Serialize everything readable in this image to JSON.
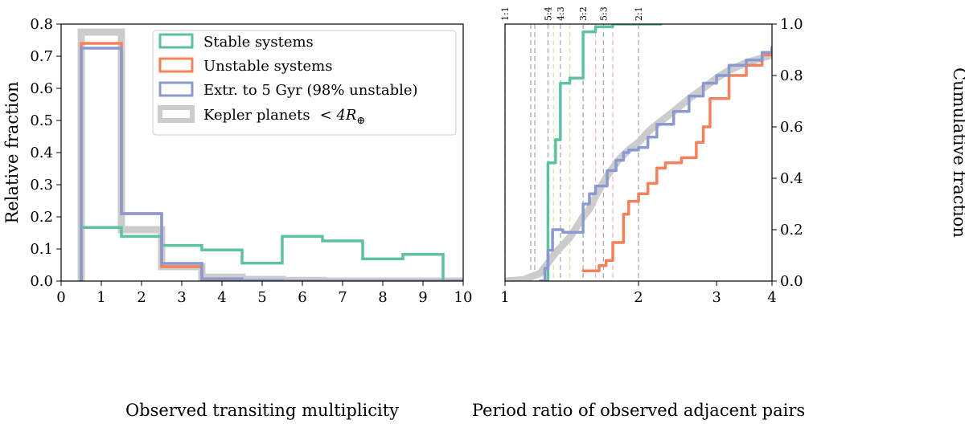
{
  "chart_data": [
    {
      "type": "histogram",
      "panel": "left",
      "xlabel": "Observed transiting multiplicity",
      "ylabel": "Relative fraction",
      "xlim": [
        0,
        10
      ],
      "ylim": [
        0,
        0.8
      ],
      "xticks": [
        0,
        1,
        2,
        3,
        4,
        5,
        6,
        7,
        8,
        9,
        10
      ],
      "yticks": [
        0.0,
        0.1,
        0.2,
        0.3,
        0.4,
        0.5,
        0.6,
        0.7,
        0.8
      ],
      "bin_edges": [
        0.5,
        1.5,
        2.5,
        3.5,
        4.5,
        5.5,
        6.5,
        7.5,
        8.5,
        9.5,
        10.5
      ],
      "legend": {
        "placement": "top-right",
        "entries": [
          "Stable systems",
          "Unstable systems",
          "Extr. to 5 Gyr (98% unstable)",
          "Kepler planets $<4R_\\oplus$"
        ]
      },
      "series": [
        {
          "name": "Kepler planets <4R⊕",
          "label": "Kepler planets",
          "label_math": "< 4R",
          "label_sub": "⊕",
          "color": "#cccccc",
          "values": [
            0.775,
            0.16,
            0.045,
            0.012,
            0.005,
            0.002,
            0.0,
            0.0,
            0.0,
            0.0
          ]
        },
        {
          "name": "Stable systems",
          "color": "#5ec1a0",
          "values": [
            0.167,
            0.139,
            0.111,
            0.097,
            0.056,
            0.139,
            0.125,
            0.069,
            0.083,
            0.0
          ]
        },
        {
          "name": "Unstable systems",
          "color": "#f4815a",
          "values": [
            0.74,
            0.21,
            0.045,
            0.004,
            0.0,
            0.0,
            0.0,
            0.0,
            0.0,
            0.0
          ]
        },
        {
          "name": "Extr. to 5 Gyr (98% unstable)",
          "color": "#8a9ad0",
          "values": [
            0.725,
            0.21,
            0.055,
            0.007,
            0.002,
            0.0,
            0.0,
            0.0,
            0.0,
            0.0
          ]
        }
      ]
    },
    {
      "type": "line",
      "panel": "right",
      "xscale": "log",
      "xlabel": "Period ratio of observed adjacent pairs",
      "ylabel": "Cumulative fraction",
      "xlim": [
        1,
        4
      ],
      "ylim": [
        0,
        1
      ],
      "xticks": [
        1,
        2,
        3,
        4
      ],
      "xtick_labels": [
        "1",
        "2",
        "3",
        "4"
      ],
      "yticks": [
        0.0,
        0.2,
        0.4,
        0.6,
        0.8,
        1.0
      ],
      "resonances": [
        {
          "label": "1:1",
          "x": 1.0,
          "color": "#aaaaaa",
          "labeled": true
        },
        {
          "label": "",
          "x": 1.143,
          "color": "#aaaaaa",
          "labeled": false
        },
        {
          "label": "",
          "x": 1.167,
          "color": "#aaaaaa",
          "labeled": false
        },
        {
          "label": "5:4",
          "x": 1.25,
          "color": "#aaaaaa",
          "labeled": true
        },
        {
          "label": "",
          "x": 1.286,
          "color": "#dde6a0",
          "labeled": false
        },
        {
          "label": "4:3",
          "x": 1.333,
          "color": "#aaaaaa",
          "labeled": true
        },
        {
          "label": "",
          "x": 1.4,
          "color": "#dde6a0",
          "labeled": false
        },
        {
          "label": "3:2",
          "x": 1.5,
          "color": "#aaaaaa",
          "labeled": true
        },
        {
          "label": "",
          "x": 1.6,
          "color": "#f6b8b8",
          "labeled": false
        },
        {
          "label": "5:3",
          "x": 1.667,
          "color": "#aaaaaa",
          "labeled": true
        },
        {
          "label": "",
          "x": 1.75,
          "color": "#f6b8b8",
          "labeled": false
        },
        {
          "label": "2:1",
          "x": 2.0,
          "color": "#aaaaaa",
          "labeled": true
        }
      ],
      "series": [
        {
          "name": "Kepler planets",
          "color": "#cccccc",
          "kind": "smooth",
          "x": [
            1.0,
            1.1,
            1.2,
            1.25,
            1.3,
            1.35,
            1.4,
            1.45,
            1.5,
            1.55,
            1.6,
            1.7,
            1.8,
            1.9,
            2.0,
            2.1,
            2.2,
            2.4,
            2.6,
            2.8,
            3.0,
            3.2,
            3.5,
            4.0
          ],
          "y": [
            0.0,
            0.005,
            0.03,
            0.07,
            0.11,
            0.14,
            0.17,
            0.21,
            0.25,
            0.28,
            0.33,
            0.41,
            0.47,
            0.51,
            0.54,
            0.58,
            0.61,
            0.66,
            0.71,
            0.75,
            0.79,
            0.82,
            0.85,
            0.88
          ]
        },
        {
          "name": "Stable systems",
          "color": "#5ec1a0",
          "kind": "step",
          "x": [
            1.2,
            1.25,
            1.3,
            1.333,
            1.4,
            1.5,
            1.6,
            1.75,
            2.25
          ],
          "y": [
            0.0,
            0.46,
            0.55,
            0.77,
            0.79,
            0.97,
            0.99,
            1.0,
            1.0
          ]
        },
        {
          "name": "Unstable systems",
          "color": "#f4815a",
          "kind": "step",
          "x": [
            1.5,
            1.63,
            1.69,
            1.75,
            1.85,
            1.9,
            2.0,
            2.1,
            2.2,
            2.3,
            2.5,
            2.7,
            2.8,
            2.9,
            3.2,
            3.5,
            3.8,
            4.0
          ],
          "y": [
            0.04,
            0.06,
            0.08,
            0.15,
            0.26,
            0.31,
            0.34,
            0.38,
            0.44,
            0.46,
            0.48,
            0.54,
            0.6,
            0.71,
            0.8,
            0.84,
            0.88,
            0.91
          ]
        },
        {
          "name": "Extr. to 5 Gyr",
          "color": "#8a9ad0",
          "kind": "step",
          "x": [
            1.2,
            1.23,
            1.25,
            1.28,
            1.35,
            1.5,
            1.55,
            1.6,
            1.7,
            1.78,
            1.85,
            1.9,
            2.0,
            2.1,
            2.2,
            2.4,
            2.6,
            2.8,
            3.0,
            3.2,
            3.5,
            3.8,
            4.0
          ],
          "y": [
            0.0,
            0.05,
            0.12,
            0.2,
            0.19,
            0.3,
            0.34,
            0.37,
            0.43,
            0.47,
            0.5,
            0.51,
            0.52,
            0.56,
            0.61,
            0.66,
            0.72,
            0.77,
            0.8,
            0.84,
            0.86,
            0.89,
            0.91
          ]
        }
      ]
    }
  ]
}
